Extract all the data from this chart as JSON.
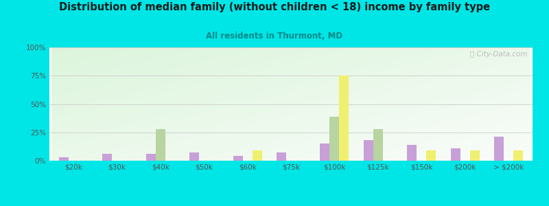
{
  "title": "Distribution of median family (without children < 18) income by family type",
  "subtitle": "All residents in Thurmont, MD",
  "categories": [
    "$20k",
    "$30k",
    "$40k",
    "$50k",
    "$60k",
    "$75k",
    "$100k",
    "$125k",
    "$150k",
    "$200k",
    "> $200k"
  ],
  "married_couple": [
    3,
    6,
    6,
    7,
    4,
    7,
    15,
    18,
    14,
    11,
    21
  ],
  "male_no_wife": [
    0,
    0,
    28,
    0,
    0,
    0,
    39,
    28,
    0,
    0,
    0
  ],
  "female_no_husband": [
    0,
    0,
    0,
    0,
    9,
    0,
    75,
    0,
    9,
    9,
    9
  ],
  "married_color": "#c8a0d8",
  "male_color": "#b8d4a0",
  "female_color": "#f0f070",
  "background_outer": "#00e5e5",
  "title_color": "#1a1a1a",
  "subtitle_color": "#008888",
  "axis_label_color": "#555555",
  "ytick_labels": [
    "0%",
    "25%",
    "50%",
    "75%",
    "100%"
  ],
  "ytick_values": [
    0,
    25,
    50,
    75,
    100
  ],
  "ylim": [
    0,
    100
  ],
  "bar_width": 0.22,
  "watermark": "ⓘ City-Data.com"
}
